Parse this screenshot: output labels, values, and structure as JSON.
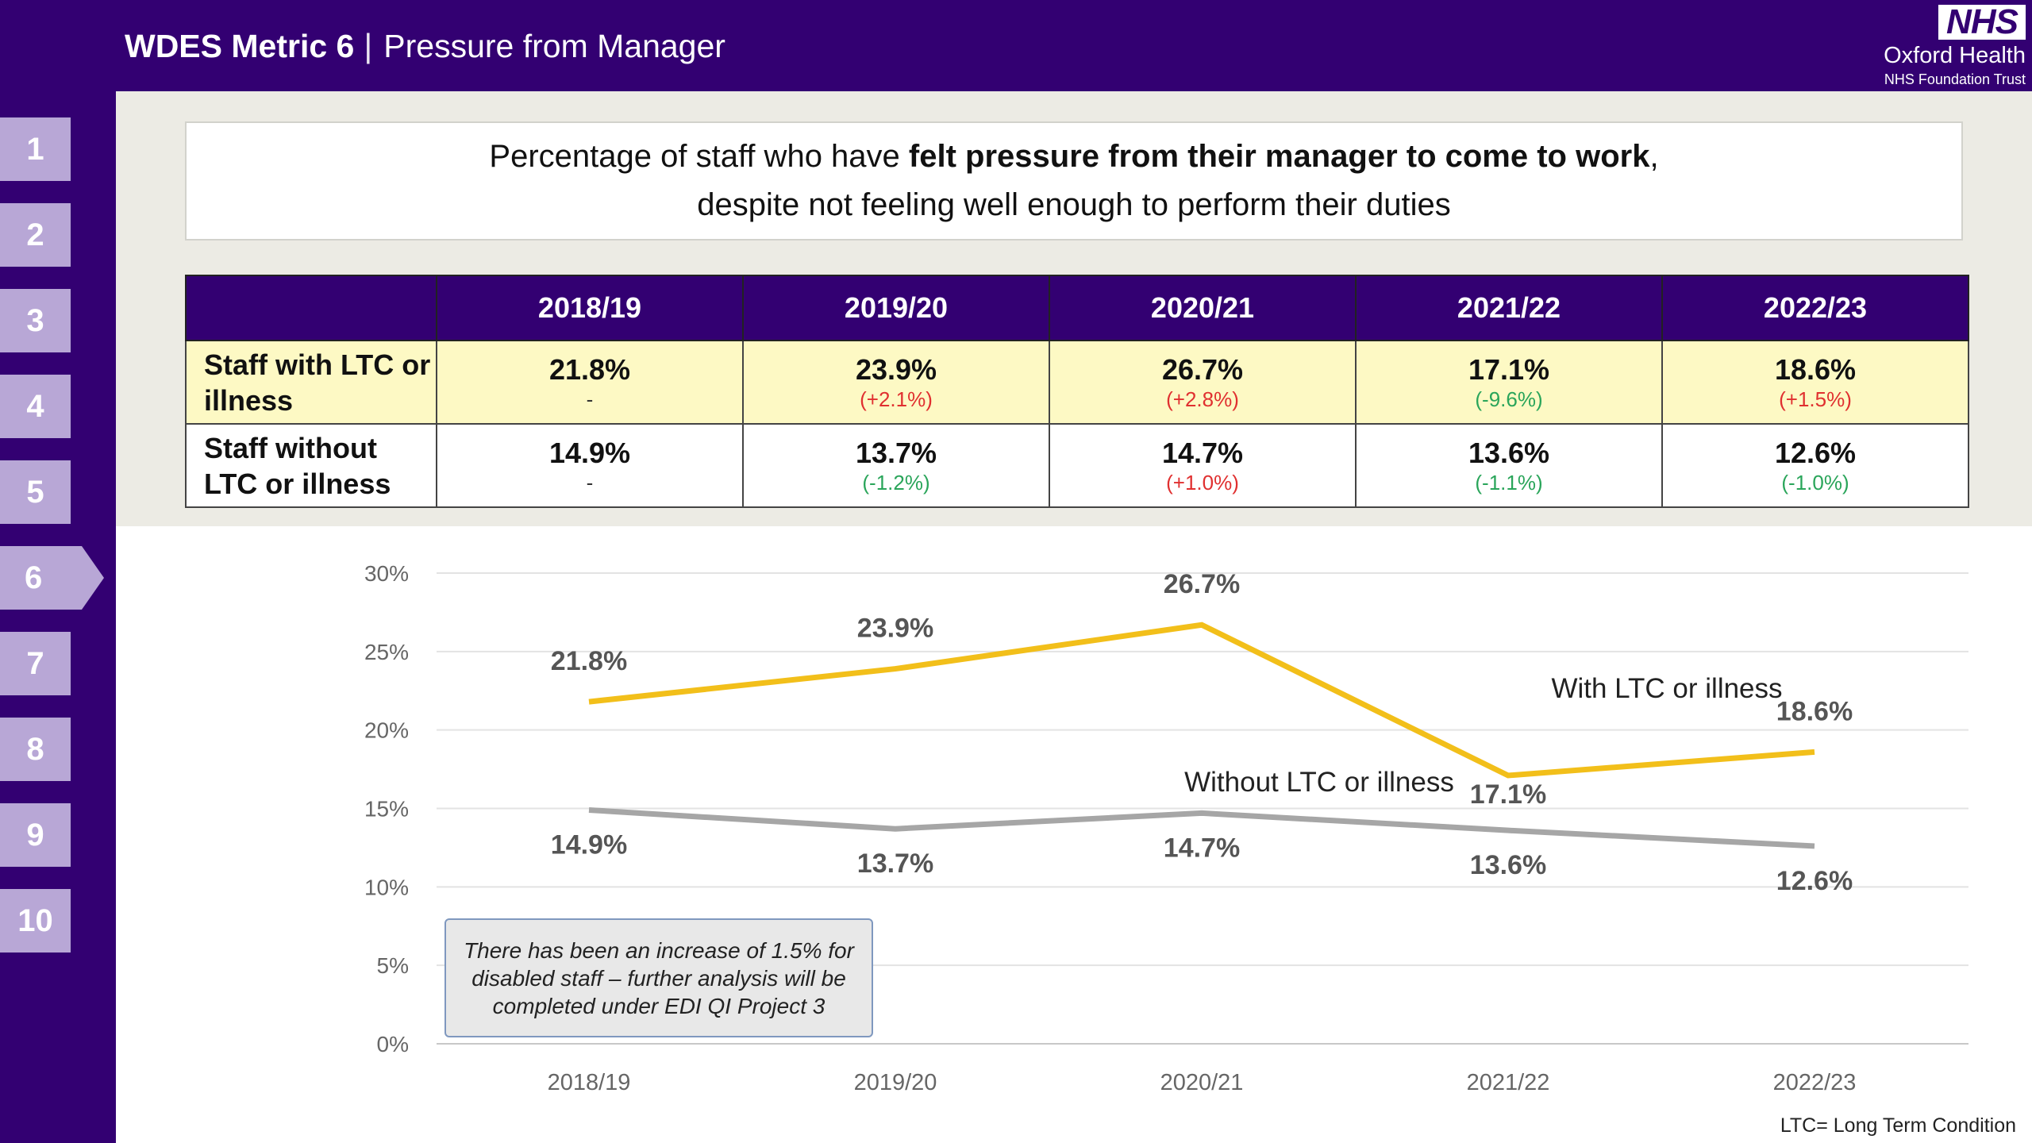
{
  "header": {
    "title_bold": "WDES Metric 6",
    "separator": "|",
    "title_rest": "Pressure from Manager",
    "logo_text": "NHS",
    "org_name": "Oxford Health",
    "org_sub": "NHS Foundation Trust"
  },
  "sidebar": {
    "items": [
      "1",
      "2",
      "3",
      "4",
      "5",
      "6",
      "7",
      "8",
      "9",
      "10"
    ],
    "active_index": 5
  },
  "question": {
    "line1_pre": "Percentage of staff who have ",
    "line1_bold": "felt pressure from their manager to come to work",
    "line1_post": ",",
    "line2": "despite not feeling well enough to perform their duties"
  },
  "table": {
    "headers": [
      "",
      "2018/19",
      "2019/20",
      "2020/21",
      "2021/22",
      "2022/23"
    ],
    "rows": [
      {
        "label": "Staff with LTC or illness",
        "cells": [
          {
            "value": "21.8%",
            "change": "-"
          },
          {
            "value": "23.9%",
            "change": "(+2.1%)"
          },
          {
            "value": "26.7%",
            "change": "(+2.8%)"
          },
          {
            "value": "17.1%",
            "change": "(-9.6%)"
          },
          {
            "value": "18.6%",
            "change": "(+1.5%)"
          }
        ]
      },
      {
        "label": "Staff without LTC or illness",
        "cells": [
          {
            "value": "14.9%",
            "change": "-"
          },
          {
            "value": "13.7%",
            "change": "(-1.2%)"
          },
          {
            "value": "14.7%",
            "change": "(+1.0%)"
          },
          {
            "value": "13.6%",
            "change": "(-1.1%)"
          },
          {
            "value": "12.6%",
            "change": "(-1.0%)"
          }
        ]
      }
    ]
  },
  "colors": {
    "brand_purple": "#330072",
    "nav_lilac": "#b8a7d6",
    "series_with": "#f2bf1a",
    "series_without": "#a6a6a6",
    "increase": "#e03030",
    "decrease": "#2aa55a"
  },
  "chart_data": {
    "type": "line",
    "categories": [
      "2018/19",
      "2019/20",
      "2020/21",
      "2021/22",
      "2022/23"
    ],
    "series": [
      {
        "name": "With LTC or illness",
        "values": [
          21.8,
          23.9,
          26.7,
          17.1,
          18.6
        ],
        "color": "#f2bf1a"
      },
      {
        "name": "Without LTC or illness",
        "values": [
          14.9,
          13.7,
          14.7,
          13.6,
          12.6
        ],
        "color": "#a6a6a6"
      }
    ],
    "yticks": [
      "0%",
      "5%",
      "10%",
      "15%",
      "20%",
      "25%",
      "30%"
    ],
    "ylim": [
      0,
      30
    ],
    "grid": true,
    "data_labels_with": [
      "21.8%",
      "23.9%",
      "26.7%",
      "17.1%",
      "18.6%"
    ],
    "data_labels_without": [
      "14.9%",
      "13.7%",
      "14.7%",
      "13.6%",
      "12.6%"
    ],
    "annotation": "There has been an increase of 1.5% for disabled staff – further analysis will be completed under EDI QI Project 3"
  },
  "footnote": "LTC= Long Term Condition"
}
